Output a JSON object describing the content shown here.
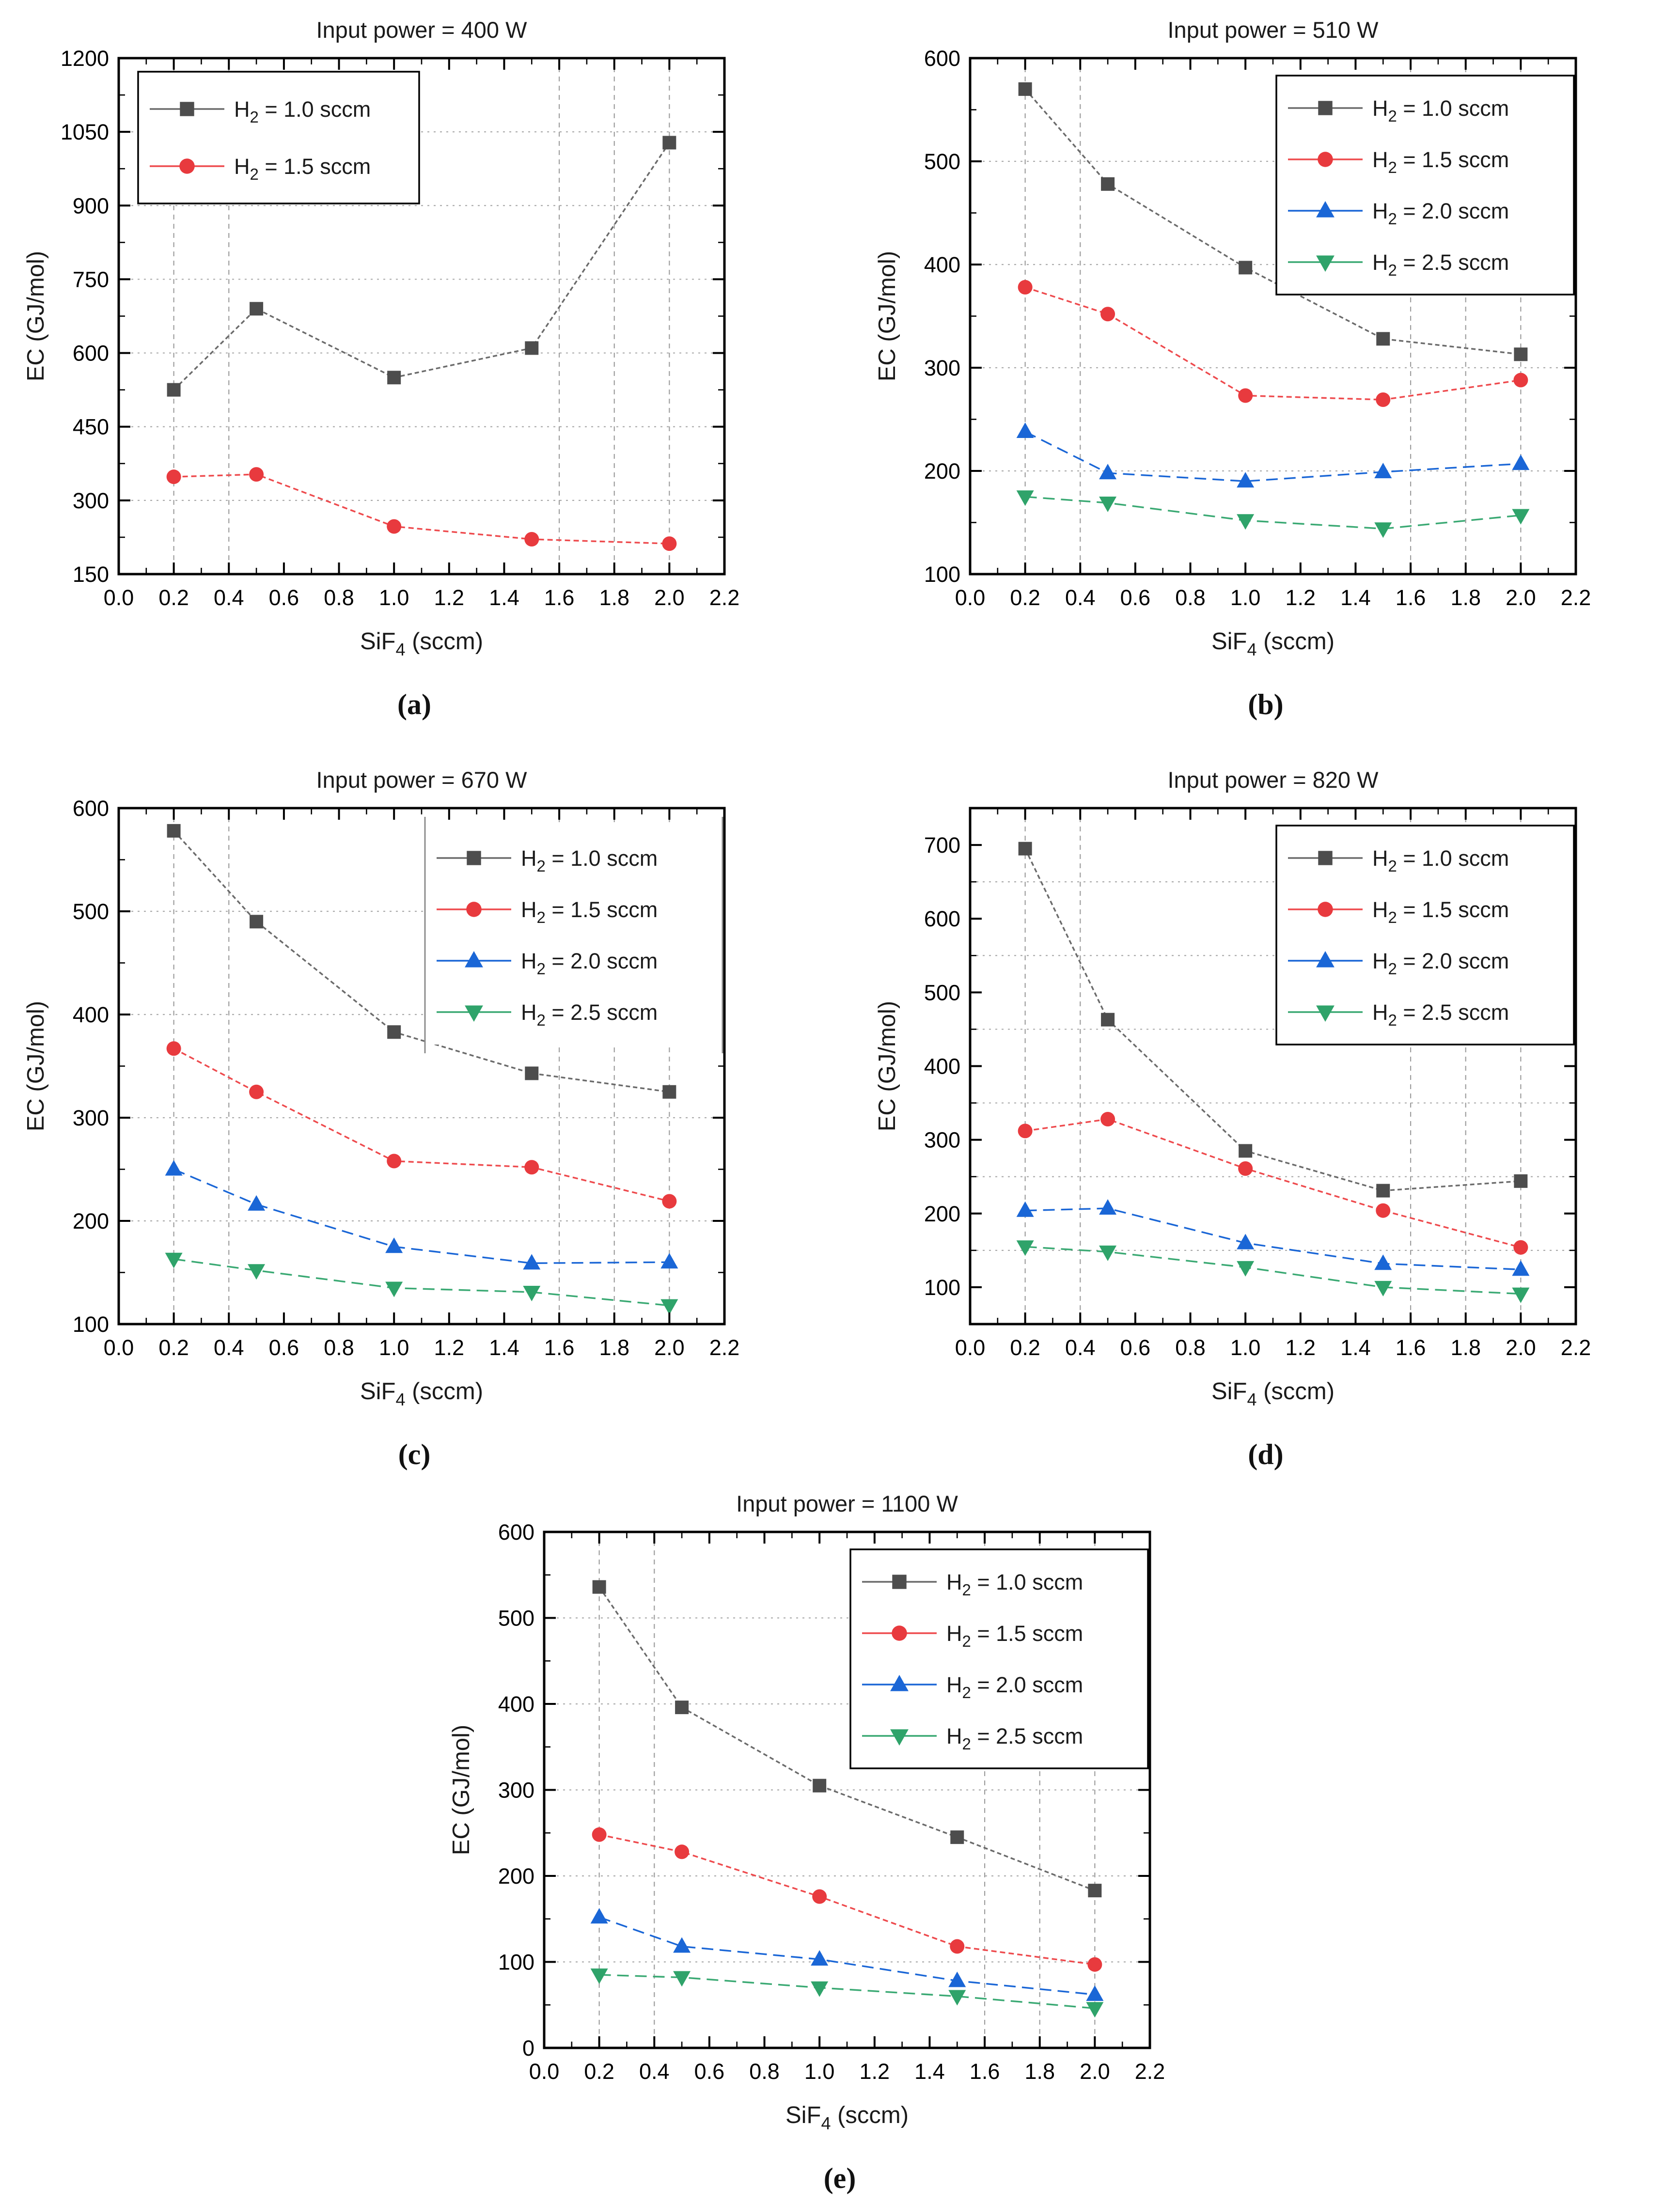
{
  "page": {
    "background": "#ffffff"
  },
  "chart_data": [
    {
      "type": "line",
      "title": "Input power = 400 W",
      "caption": "(a)",
      "xlabel": "SiF4 (sccm)",
      "ylabel": "EC (GJ/mol)",
      "x": [
        0.2,
        0.5,
        1.0,
        1.5,
        2.0
      ],
      "xlim": [
        0.0,
        2.2
      ],
      "x_major_step": 0.2,
      "x_minor_step": 0.1,
      "ylim": [
        150,
        1200
      ],
      "y_major_step": 150,
      "y_minor_step": 75,
      "grid_x": [
        0.2,
        0.4,
        1.6,
        1.8,
        2.0
      ],
      "legend": {
        "position": "top-left",
        "border": "full"
      },
      "series": [
        {
          "name": "H2 = 1.0 sccm",
          "values": [
            525,
            690,
            550,
            610,
            1028
          ]
        },
        {
          "name": "H2 = 1.5 sccm",
          "values": [
            348,
            353,
            247,
            221,
            212
          ]
        }
      ]
    },
    {
      "type": "line",
      "title": "Input power = 510 W",
      "caption": "(b)",
      "xlabel": "SiF4 (sccm)",
      "ylabel": "EC (GJ/mol)",
      "x": [
        0.2,
        0.5,
        1.0,
        1.5,
        2.0
      ],
      "xlim": [
        0.0,
        2.2
      ],
      "x_major_step": 0.2,
      "x_minor_step": 0.1,
      "ylim": [
        100,
        600
      ],
      "y_major_step": 100,
      "y_minor_step": 50,
      "grid_x": [
        0.2,
        0.4,
        1.6,
        1.8,
        2.0
      ],
      "legend": {
        "position": "top-right",
        "border": "full"
      },
      "series": [
        {
          "name": "H2 = 1.0 sccm",
          "values": [
            570,
            478,
            397,
            328,
            313
          ]
        },
        {
          "name": "H2 = 1.5 sccm",
          "values": [
            378,
            352,
            273,
            269,
            288
          ]
        },
        {
          "name": "H2 = 2.0 sccm",
          "values": [
            238,
            198,
            190,
            199,
            207
          ]
        },
        {
          "name": "H2 = 2.5 sccm",
          "values": [
            175,
            169,
            152,
            144,
            157
          ]
        }
      ]
    },
    {
      "type": "line",
      "title": "Input power = 670 W",
      "caption": "(c)",
      "xlabel": "SiF4 (sccm)",
      "ylabel": "EC (GJ/mol)",
      "x": [
        0.2,
        0.5,
        1.0,
        1.5,
        2.0
      ],
      "xlim": [
        0.0,
        2.2
      ],
      "x_major_step": 0.2,
      "x_minor_step": 0.1,
      "ylim": [
        100,
        600
      ],
      "y_major_step": 100,
      "y_minor_step": 50,
      "grid_x": [
        0.2,
        0.4,
        1.6,
        1.8,
        2.0
      ],
      "legend": {
        "position": "top-right",
        "border": "sides"
      },
      "series": [
        {
          "name": "H2 = 1.0 sccm",
          "values": [
            578,
            490,
            383,
            343,
            325
          ]
        },
        {
          "name": "H2 = 1.5 sccm",
          "values": [
            367,
            325,
            258,
            252,
            219
          ]
        },
        {
          "name": "H2 = 2.0 sccm",
          "values": [
            250,
            216,
            175,
            159,
            160
          ]
        },
        {
          "name": "H2 = 2.5 sccm",
          "values": [
            163,
            152,
            135,
            131,
            118
          ]
        }
      ]
    },
    {
      "type": "line",
      "title": "Input power = 820 W",
      "caption": "(d)",
      "xlabel": "SiF4 (sccm)",
      "ylabel": "EC (GJ/mol)",
      "x": [
        0.2,
        0.5,
        1.0,
        1.5,
        2.0
      ],
      "xlim": [
        0.0,
        2.2
      ],
      "x_major_step": 0.2,
      "x_minor_step": 0.1,
      "ylim": [
        50,
        750
      ],
      "y_major_step": 100,
      "y_minor_step": 50,
      "grid_x": [
        0.2,
        0.4,
        1.6,
        1.8,
        2.0
      ],
      "legend": {
        "position": "top-right",
        "border": "full"
      },
      "series": [
        {
          "name": "H2 = 1.0 sccm",
          "values": [
            695,
            463,
            285,
            231,
            244
          ]
        },
        {
          "name": "H2 = 1.5 sccm",
          "values": [
            312,
            328,
            261,
            204,
            154
          ]
        },
        {
          "name": "H2 = 2.0 sccm",
          "values": [
            204,
            207,
            160,
            132,
            124
          ]
        },
        {
          "name": "H2 = 2.5 sccm",
          "values": [
            155,
            148,
            127,
            100,
            91
          ]
        }
      ]
    },
    {
      "type": "line",
      "title": "Input power = 1100 W",
      "caption": "(e)",
      "xlabel": "SiF4 (sccm)",
      "ylabel": "EC (GJ/mol)",
      "x": [
        0.2,
        0.5,
        1.0,
        1.5,
        2.0
      ],
      "xlim": [
        0.0,
        2.2
      ],
      "x_major_step": 0.2,
      "x_minor_step": 0.1,
      "ylim": [
        0,
        600
      ],
      "y_major_step": 100,
      "y_minor_step": 50,
      "grid_x": [
        0.2,
        0.4,
        1.6,
        1.8,
        2.0
      ],
      "legend": {
        "position": "top-right",
        "border": "full"
      },
      "series": [
        {
          "name": "H2 = 1.0 sccm",
          "values": [
            536,
            396,
            305,
            245,
            183
          ]
        },
        {
          "name": "H2 = 1.5 sccm",
          "values": [
            248,
            228,
            176,
            118,
            97
          ]
        },
        {
          "name": "H2 = 2.0 sccm",
          "values": [
            152,
            118,
            103,
            78,
            62
          ]
        },
        {
          "name": "H2 = 2.5 sccm",
          "values": [
            85,
            82,
            70,
            60,
            46
          ]
        }
      ]
    }
  ],
  "layout": {
    "xlabel_parts": {
      "base": "SiF",
      "sub": "4",
      "rest": " (sccm)"
    },
    "series_styles": [
      {
        "label": {
          "base": "H",
          "sub": "2",
          "rest": " = 1.0 sccm"
        },
        "marker": "square",
        "color": "#4d4d4d",
        "line_color": "#6b6b6b",
        "dash": "9 6"
      },
      {
        "label": {
          "base": "H",
          "sub": "2",
          "rest": " = 1.5 sccm"
        },
        "marker": "circle",
        "color": "#e83a3e",
        "line_color": "#ee4a4d",
        "dash": "11 7"
      },
      {
        "label": {
          "base": "H",
          "sub": "2",
          "rest": " = 2.0 sccm"
        },
        "marker": "triangle-up",
        "color": "#1a66d6",
        "line_color": "#1a66d6",
        "dash": "24 13"
      },
      {
        "label": {
          "base": "H",
          "sub": "2",
          "rest": " = 2.5 sccm"
        },
        "marker": "triangle-down",
        "color": "#2fa36a",
        "line_color": "#3aa973",
        "dash": "24 13"
      }
    ],
    "grid": {
      "color": "#9e9e9e",
      "v_dash": "10 9",
      "h_dash": "4 9"
    },
    "frame_color": "#000000",
    "text_color": "#1a1a1a",
    "legend_side_border_color": "#8c8c8c"
  }
}
